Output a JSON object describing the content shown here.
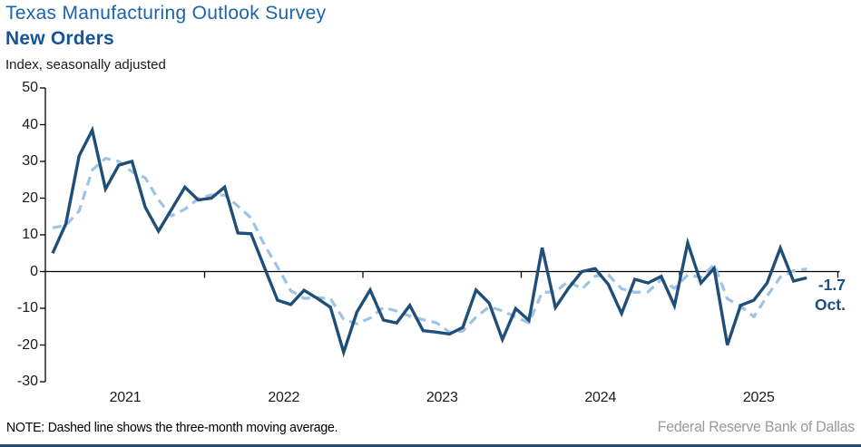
{
  "header": {
    "title": "Texas Manufacturing Outlook Survey",
    "subtitle": "New Orders",
    "units": "Index, seasonally adjusted"
  },
  "annotation": {
    "value": "-1.7",
    "month": "Oct."
  },
  "footer": {
    "note": "NOTE: Dashed line shows the three-month moving average.",
    "source": "Federal Reserve Bank of Dallas"
  },
  "colors": {
    "series_line": "#1F4E79",
    "moving_average_line": "#9DC3E6",
    "title": "#1C63AE",
    "subtitle": "#14549E",
    "annotation": "#1F4E79",
    "axis_line": "#000000",
    "source_text": "#9A9A9A",
    "bottom_rule": "#1F4E79"
  },
  "chart_data": {
    "type": "line",
    "title": "Texas Manufacturing Outlook Survey — New Orders",
    "ylabel": "Index, seasonally adjusted",
    "ylim": [
      -30,
      50
    ],
    "yticks": [
      50,
      40,
      30,
      20,
      10,
      0,
      -10,
      -20,
      -30
    ],
    "x_year_labels": [
      "2021",
      "2022",
      "2023",
      "2024",
      "2025"
    ],
    "x_start": "2021-01",
    "x_end": "2025-10",
    "frequency": "monthly",
    "grid": false,
    "series": [
      {
        "name": "New orders index",
        "style": "solid",
        "values": [
          5.0,
          13.0,
          31.5,
          38.5,
          22.5,
          29.0,
          30.0,
          17.5,
          11.0,
          17.0,
          23.0,
          19.5,
          20.0,
          23.0,
          10.5,
          10.3,
          1.2,
          -7.8,
          -9.0,
          -5.1,
          -7.3,
          -9.7,
          -22.0,
          -11.0,
          -5.0,
          -13.2,
          -14.0,
          -9.2,
          -16.1,
          -16.5,
          -17.0,
          -15.2,
          -5.0,
          -8.6,
          -18.5,
          -10.1,
          -13.3,
          6.5,
          -9.8,
          -4.5,
          0.0,
          0.8,
          -3.5,
          -11.4,
          -2.1,
          -3.1,
          -1.3,
          -9.3,
          7.8,
          -3.1,
          0.9,
          -20.0,
          -9.2,
          -7.8,
          -3.1,
          6.4,
          -2.6,
          -1.7
        ]
      },
      {
        "name": "Three-month moving average",
        "style": "dashed",
        "derived": "three_month_moving_average",
        "seed": [
          11.9,
          12.6
        ]
      }
    ],
    "last_point": {
      "label": "Oct.",
      "value": -1.7
    }
  }
}
